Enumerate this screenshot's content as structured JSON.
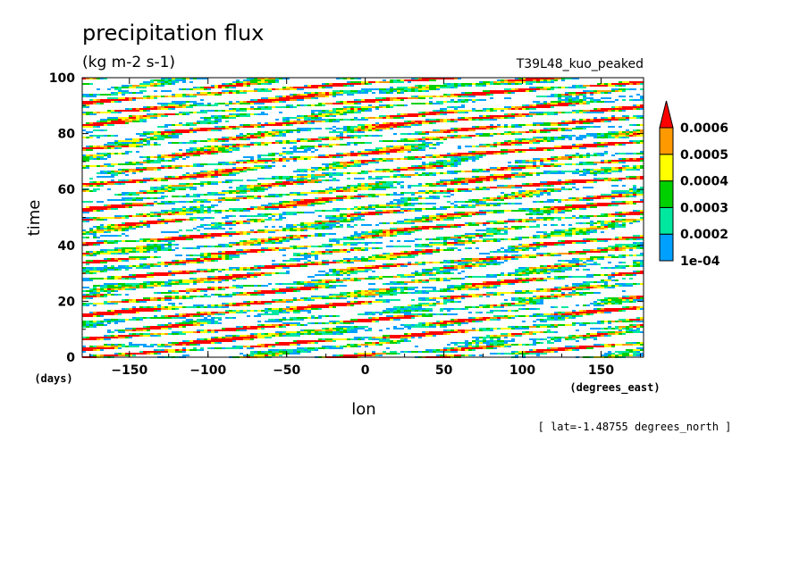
{
  "title": "precipitation flux",
  "units": "(kg m-2 s-1)",
  "run_label": "T39L48_kuo_peaked",
  "annotation": "[ lat=-1.48755 degrees_north ]",
  "chart_data": {
    "type": "heatmap",
    "title": "precipitation flux",
    "xlabel": "lon",
    "xunits": "(degrees_east)",
    "ylabel": "time",
    "yunits": "(days)",
    "xlim": [
      -180,
      177
    ],
    "ylim": [
      0,
      100
    ],
    "xticks": [
      {
        "value": -150,
        "label": "−150"
      },
      {
        "value": -100,
        "label": "−100"
      },
      {
        "value": -50,
        "label": "−50"
      },
      {
        "value": 0,
        "label": "0"
      },
      {
        "value": 50,
        "label": "50"
      },
      {
        "value": 100,
        "label": "100"
      },
      {
        "value": 150,
        "label": "150"
      }
    ],
    "yticks": [
      {
        "value": 0,
        "label": "0"
      },
      {
        "value": 20,
        "label": "20"
      },
      {
        "value": 40,
        "label": "40"
      },
      {
        "value": 60,
        "label": "60"
      },
      {
        "value": 80,
        "label": "80"
      },
      {
        "value": 100,
        "label": "100"
      }
    ],
    "colorbar": {
      "levels": [
        {
          "from": 0.0001,
          "to": 0.0002,
          "color": "#00a0ff"
        },
        {
          "from": 0.0002,
          "to": 0.0003,
          "color": "#00e8a0"
        },
        {
          "from": 0.0003,
          "to": 0.0004,
          "color": "#00d000"
        },
        {
          "from": 0.0004,
          "to": 0.0005,
          "color": "#ffff00"
        },
        {
          "from": 0.0005,
          "to": 0.0006,
          "color": "#ff9900"
        },
        {
          "from": 0.0006,
          "to": null,
          "color": "#ff0000"
        }
      ],
      "labels": [
        "1e-04",
        "0.0002",
        "0.0003",
        "0.0004",
        "0.0005",
        "0.0006"
      ],
      "below_min_color": "#ffffff"
    }
  }
}
